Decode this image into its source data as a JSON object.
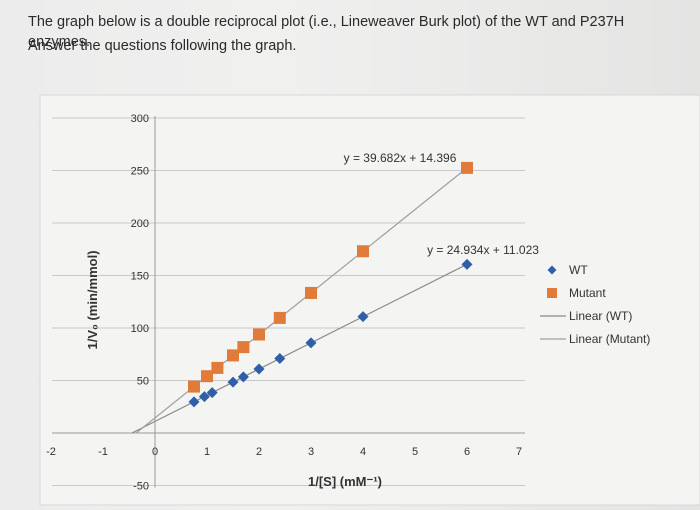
{
  "question": {
    "line1": "The graph below is a double reciprocal plot (i.e., Lineweaver Burk plot) of the WT and P237H enzymes.",
    "line2": "Answer the questions following the graph."
  },
  "chart_data": {
    "type": "scatter",
    "title": "",
    "xlabel": "1/[S] (mM⁻¹)",
    "ylabel": "1/V₀ (min/mmol)",
    "xlim": [
      -2,
      7
    ],
    "ylim": [
      -50,
      300
    ],
    "x_ticks": [
      -2,
      -1,
      0,
      1,
      2,
      3,
      4,
      5,
      6,
      7
    ],
    "y_ticks": [
      -50,
      0,
      50,
      100,
      150,
      200,
      250,
      300
    ],
    "grid": true,
    "legend_position": "right",
    "series": [
      {
        "name": "WT",
        "marker": "diamond",
        "color": "#2e5fa8",
        "x": [
          0.75,
          0.95,
          1.1,
          1.5,
          1.7,
          2.0,
          2.4,
          3.0,
          4.0,
          6.0
        ],
        "y": [
          29.7,
          34.7,
          38.5,
          48.4,
          53.4,
          60.9,
          70.9,
          85.8,
          110.8,
          160.6
        ]
      },
      {
        "name": "Mutant",
        "marker": "square",
        "color": "#e07b3a",
        "x": [
          0.75,
          1.0,
          1.2,
          1.5,
          1.7,
          2.0,
          2.4,
          3.0,
          4.0,
          6.0
        ],
        "y": [
          44.2,
          54.1,
          62.0,
          73.9,
          81.8,
          93.8,
          109.6,
          133.4,
          173.1,
          252.5
        ]
      },
      {
        "name": "Linear (WT)",
        "type": "trendline",
        "color": "#8a8a8a",
        "slope": 24.934,
        "intercept": 11.023,
        "x_range": [
          -0.442,
          6.0
        ],
        "equation": "y = 24.934x + 11.023"
      },
      {
        "name": "Linear (Mutant)",
        "type": "trendline",
        "color": "#a0a0a0",
        "slope": 39.682,
        "intercept": 14.396,
        "x_range": [
          -0.363,
          6.0
        ],
        "equation": "y = 39.682x + 14.396"
      }
    ]
  }
}
